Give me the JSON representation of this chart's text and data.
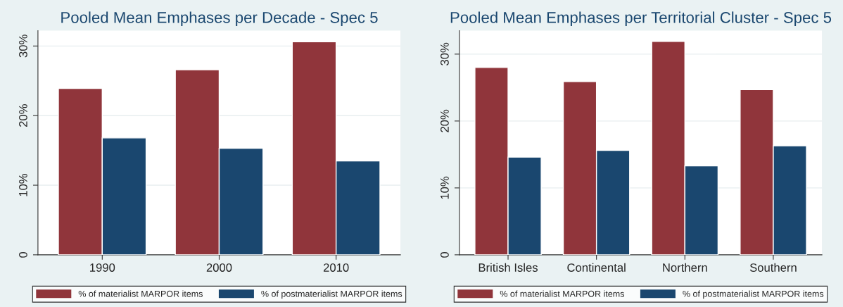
{
  "chart_data": [
    {
      "type": "bar",
      "title": "Pooled Mean Emphases per Decade - Spec 5",
      "categories": [
        "1990",
        "2000",
        "2010"
      ],
      "series": [
        {
          "name": "% of materialist MARPOR items",
          "color": "#90353b",
          "values": [
            23.9,
            26.6,
            30.6
          ]
        },
        {
          "name": "% of postmaterialist MARPOR items",
          "color": "#1a476f",
          "values": [
            16.8,
            15.3,
            13.5
          ]
        }
      ],
      "ylim": [
        0,
        32.2
      ],
      "yticks": [
        {
          "value": 0,
          "label": "0"
        },
        {
          "value": 10,
          "label": "10%"
        },
        {
          "value": 20,
          "label": "20%"
        },
        {
          "value": 30,
          "label": "30%"
        }
      ],
      "grid": "y",
      "legend": "bottom"
    },
    {
      "type": "bar",
      "title": "Pooled Mean Emphases per Territorial Cluster - Spec 5",
      "categories": [
        "British Isles",
        "Continental",
        "Northern",
        "Southern"
      ],
      "series": [
        {
          "name": "% of materialist MARPOR items",
          "color": "#90353b",
          "values": [
            28.0,
            25.9,
            31.9,
            24.7
          ]
        },
        {
          "name": "% of postmaterialist MARPOR items",
          "color": "#1a476f",
          "values": [
            14.6,
            15.6,
            13.3,
            16.3
          ]
        }
      ],
      "ylim": [
        0,
        33.5
      ],
      "yticks": [
        {
          "value": 0,
          "label": "0"
        },
        {
          "value": 10,
          "label": "10%"
        },
        {
          "value": 20,
          "label": "20%"
        },
        {
          "value": 30,
          "label": "30%"
        }
      ],
      "grid": "y",
      "legend": "bottom"
    }
  ]
}
